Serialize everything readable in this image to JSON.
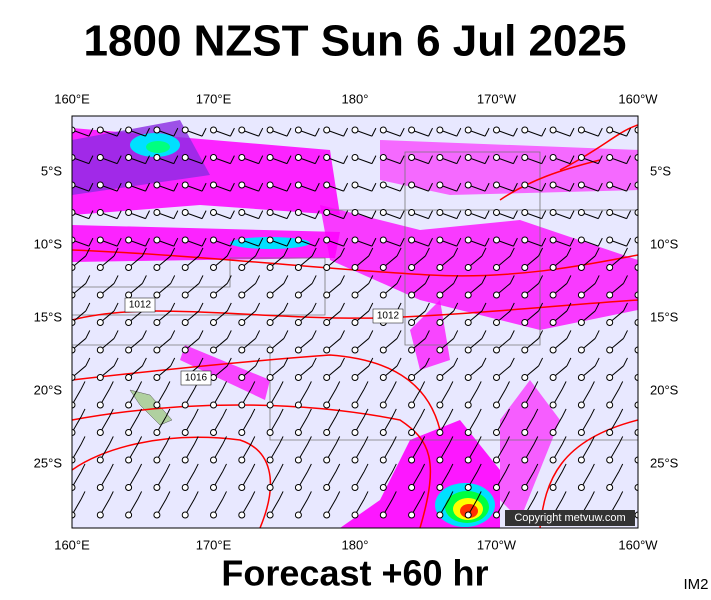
{
  "title": "1800 NZST Sun 6 Jul 2025",
  "footer": "Forecast +60 hr",
  "image_id": "IM2",
  "copyright": "Copyright metvuw.com",
  "longitude_labels": [
    "160°E",
    "170°E",
    "180°",
    "170°W",
    "160°W"
  ],
  "latitude_labels": [
    "5°S",
    "10°S",
    "15°S",
    "20°S",
    "25°S"
  ],
  "isobar_labels": [
    "1012",
    "1012",
    "1016"
  ]
}
